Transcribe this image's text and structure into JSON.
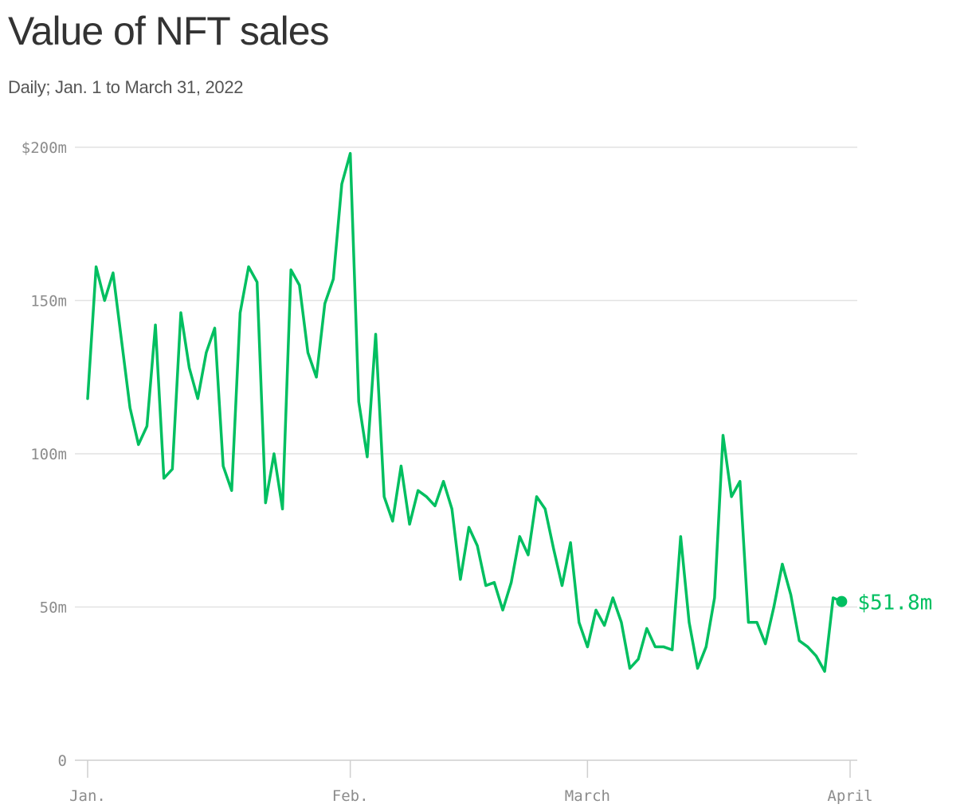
{
  "chart_data": {
    "type": "line",
    "title": "Value of NFT sales",
    "subtitle": "Daily; Jan. 1 to March 31, 2022",
    "xlabel": "",
    "ylabel": "",
    "ylim": [
      0,
      200
    ],
    "y_ticks": [
      {
        "value": 0,
        "label": "0"
      },
      {
        "value": 50,
        "label": "50m"
      },
      {
        "value": 100,
        "label": "100m"
      },
      {
        "value": 150,
        "label": "150m"
      },
      {
        "value": 200,
        "label": "$200m"
      }
    ],
    "x_ticks": [
      {
        "date": "2022-01-01",
        "label": "Jan."
      },
      {
        "date": "2022-02-01",
        "label": "Feb."
      },
      {
        "date": "2022-03-01",
        "label": "March"
      },
      {
        "date": "2022-04-01",
        "label": "April"
      }
    ],
    "grid": true,
    "line_color": "#00bf60",
    "end_label": "$51.8m",
    "series": [
      {
        "x_start": "2022-01-01",
        "x_end": "2022-03-31",
        "frequency": "daily",
        "values": [
          118,
          161,
          150,
          159,
          137,
          115,
          103,
          109,
          142,
          92,
          95,
          146,
          128,
          118,
          133,
          141,
          96,
          88,
          146,
          161,
          156,
          84,
          100,
          82,
          160,
          155,
          133,
          125,
          149,
          157,
          188,
          198,
          117,
          99,
          139,
          86,
          78,
          96,
          77,
          88,
          86,
          83,
          91,
          82,
          59,
          76,
          70,
          57,
          58,
          49,
          58,
          73,
          67,
          86,
          82,
          69,
          57,
          71,
          45,
          37,
          49,
          44,
          53,
          45,
          30,
          33,
          43,
          37,
          37,
          36,
          73,
          45,
          30,
          37,
          53,
          106,
          86,
          91,
          45,
          45,
          38,
          50,
          64,
          54,
          39,
          37,
          34,
          29,
          53,
          51.8
        ]
      }
    ]
  }
}
